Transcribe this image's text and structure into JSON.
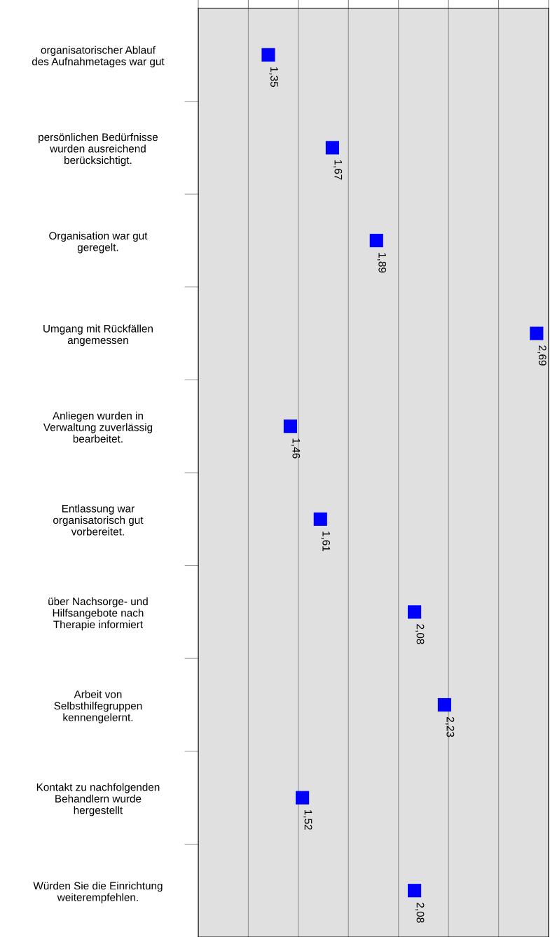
{
  "chart_data": {
    "type": "scatter",
    "orientation": "horizontal",
    "categories": [
      "organisatorischer Ablauf des Aufnahmetages war gut",
      "persönlichen Bedürfnisse wurden ausreichend berücksichtigt.",
      "Organisation war gut geregelt.",
      "Umgang mit Rückfällen angemessen",
      "Anliegen wurden in Verwaltung zuverlässig bearbeitet.",
      "Entlassung war organisatorisch gut vorbereitet.",
      "über Nachsorge- und Hilfsangebote nach Therapie informiert",
      "Arbeit von Selbsthilfegruppen kennengelernt.",
      "Kontakt zu nachfolgenden Behandlern wurde hergestellt",
      "Würden Sie die Einrichtung weiterempfehlen."
    ],
    "series": [
      {
        "color": "#0000ff",
        "values": [
          1.35,
          1.67,
          1.89,
          2.69,
          1.46,
          1.61,
          2.08,
          2.23,
          1.52,
          2.08
        ],
        "value_labels": [
          "1,35",
          "1,67",
          "1,89",
          "2,69",
          "1,46",
          "1,61",
          "2,08",
          "2,23",
          "1,52",
          "2,08"
        ]
      }
    ],
    "xlim": [
      1,
      2.75
    ],
    "xticks": [
      {
        "value": 1,
        "label": null
      },
      {
        "value": 1.25,
        "label": null
      },
      {
        "value": 1.5,
        "label": null
      },
      {
        "value": 1.75,
        "label": null
      },
      {
        "value": 2,
        "label": null
      },
      {
        "value": 2.25,
        "label": null
      },
      {
        "value": 2.5,
        "label": null
      },
      {
        "value": 2.75,
        "label": null
      }
    ],
    "tick_labels": "y",
    "grid": "x",
    "marker": "square",
    "legend": false
  }
}
